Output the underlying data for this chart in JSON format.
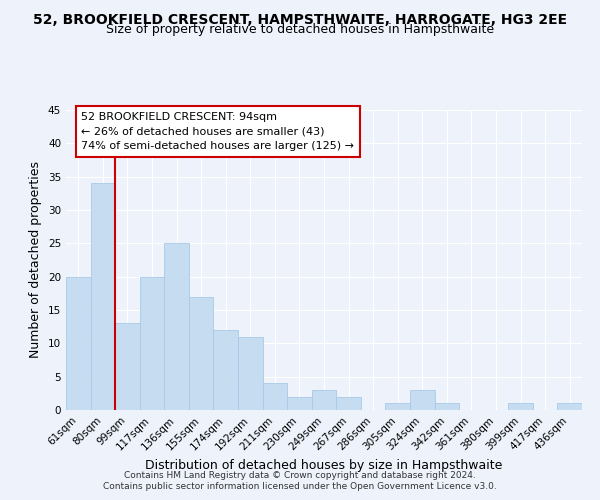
{
  "title": "52, BROOKFIELD CRESCENT, HAMPSTHWAITE, HARROGATE, HG3 2EE",
  "subtitle": "Size of property relative to detached houses in Hampsthwaite",
  "xlabel": "Distribution of detached houses by size in Hampsthwaite",
  "ylabel": "Number of detached properties",
  "bar_labels": [
    "61sqm",
    "80sqm",
    "99sqm",
    "117sqm",
    "136sqm",
    "155sqm",
    "174sqm",
    "192sqm",
    "211sqm",
    "230sqm",
    "249sqm",
    "267sqm",
    "286sqm",
    "305sqm",
    "324sqm",
    "342sqm",
    "361sqm",
    "380sqm",
    "399sqm",
    "417sqm",
    "436sqm"
  ],
  "bar_heights": [
    20,
    34,
    13,
    20,
    25,
    17,
    12,
    11,
    4,
    2,
    3,
    2,
    0,
    1,
    3,
    1,
    0,
    0,
    1,
    0,
    1
  ],
  "bar_color": "#c6dcf0",
  "bar_edge_color": "#a8c8e8",
  "vline_color": "#cc0000",
  "ylim": [
    0,
    45
  ],
  "yticks": [
    0,
    5,
    10,
    15,
    20,
    25,
    30,
    35,
    40,
    45
  ],
  "annotation_line1": "52 BROOKFIELD CRESCENT: 94sqm",
  "annotation_line2": "← 26% of detached houses are smaller (43)",
  "annotation_line3": "74% of semi-detached houses are larger (125) →",
  "footer_line1": "Contains HM Land Registry data © Crown copyright and database right 2024.",
  "footer_line2": "Contains public sector information licensed under the Open Government Licence v3.0.",
  "background_color": "#eef3fb",
  "grid_color": "#ffffff",
  "title_fontsize": 10,
  "subtitle_fontsize": 9,
  "axis_label_fontsize": 9,
  "tick_fontsize": 7.5,
  "annotation_fontsize": 8,
  "footer_fontsize": 6.5
}
